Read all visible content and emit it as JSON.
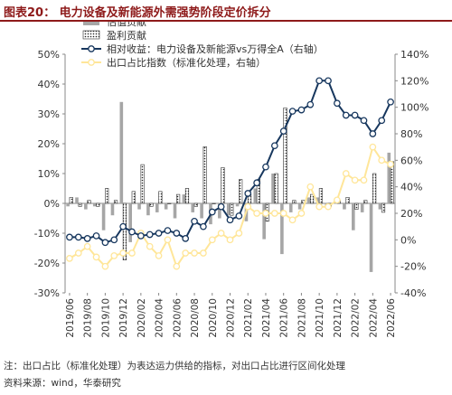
{
  "title": "图表20：   电力设备及新能源外需强势阶段定价拆分",
  "notes": {
    "note": "注：出口占比（标准化处理）为表达运力供给的指标，对出口占比进行区间化处理",
    "source": "资料来源：wind，华泰研究"
  },
  "colors": {
    "valuation": "#a6a6a6",
    "earnings_border": "#333333",
    "relative": "#17375e",
    "export": "#ffe699",
    "title": "#8e1a1a"
  },
  "chart_data": {
    "type": "bar+line",
    "legend_position": "top",
    "grid": false,
    "x_tick_labels": [
      "2019/06",
      "2019/08",
      "2019/10",
      "2019/12",
      "2020/02",
      "2020/04",
      "2020/06",
      "2020/08",
      "2020/10",
      "2020/12",
      "2021/02",
      "2021/04",
      "2021/06",
      "2021/08",
      "2021/10",
      "2021/12",
      "2022/02",
      "2022/04",
      "2022/06"
    ],
    "categories": [
      "2019/06",
      "2019/07",
      "2019/08",
      "2019/09",
      "2019/10",
      "2019/11",
      "2019/12",
      "2020/01",
      "2020/02",
      "2020/03",
      "2020/04",
      "2020/05",
      "2020/06",
      "2020/07",
      "2020/08",
      "2020/09",
      "2020/10",
      "2020/11",
      "2020/12",
      "2021/01",
      "2021/02",
      "2021/03",
      "2021/04",
      "2021/05",
      "2021/06",
      "2021/07",
      "2021/08",
      "2021/09",
      "2021/10",
      "2021/11",
      "2021/12",
      "2022/01",
      "2022/02",
      "2022/03",
      "2022/04",
      "2022/05",
      "2022/06"
    ],
    "y_left": {
      "min": -30,
      "max": 50,
      "step": 10,
      "tick_labels": [
        "50%",
        "40%",
        "30%",
        "20%",
        "10%",
        "0%",
        "-10%",
        "-20%",
        "-30%"
      ]
    },
    "y_right": {
      "min": -40,
      "max": 140,
      "step": 20,
      "tick_labels": [
        "140%",
        "120%",
        "100%",
        "80%",
        "60%",
        "40%",
        "20%",
        "0%",
        "-20%",
        "-40%"
      ]
    },
    "series": [
      {
        "name": "估值贡献",
        "type": "bar",
        "axis": "left",
        "values": [
          -1,
          2,
          -2,
          -1,
          -9,
          -4,
          34,
          -13,
          -2,
          -4,
          -3,
          -2,
          -5,
          3,
          -3,
          -5,
          -7,
          -5,
          -4,
          -1,
          -6,
          5,
          -12,
          10,
          -17,
          -3,
          -2,
          2,
          2,
          -1,
          0,
          -2,
          -9,
          -3,
          -23,
          -2,
          17
        ]
      },
      {
        "name": "盈利贡献",
        "type": "bar",
        "axis": "left",
        "values": [
          2,
          -1,
          1,
          -1,
          5,
          1,
          -19,
          4,
          13,
          -1,
          4,
          0,
          3,
          5,
          -1,
          19,
          0,
          12,
          -4,
          8,
          3,
          8,
          -6,
          10,
          32,
          1,
          1,
          3,
          5,
          -1,
          1,
          2,
          -2,
          1,
          10,
          -3,
          14
        ]
      },
      {
        "name": "相对收益：电力设备及新能源vs万得全A（右轴）",
        "type": "line",
        "axis": "right",
        "values": [
          2,
          2,
          1,
          3,
          -2,
          0,
          10,
          6,
          3,
          4,
          5,
          7,
          5,
          1,
          14,
          10,
          21,
          25,
          15,
          18,
          35,
          43,
          55,
          71,
          82,
          97,
          98,
          102,
          120,
          120,
          103,
          94,
          94,
          90,
          80,
          90,
          104
        ]
      },
      {
        "name": "出口占比指数（标准化处理，右轴）",
        "type": "line",
        "axis": "right",
        "values": [
          -14,
          -10,
          -5,
          -13,
          -20,
          -12,
          -10,
          -10,
          5,
          -5,
          -12,
          0,
          -20,
          -10,
          -10,
          -10,
          0,
          5,
          0,
          5,
          25,
          20,
          20,
          20,
          20,
          15,
          20,
          40,
          25,
          25,
          30,
          50,
          45,
          45,
          70,
          60,
          57
        ]
      }
    ]
  }
}
